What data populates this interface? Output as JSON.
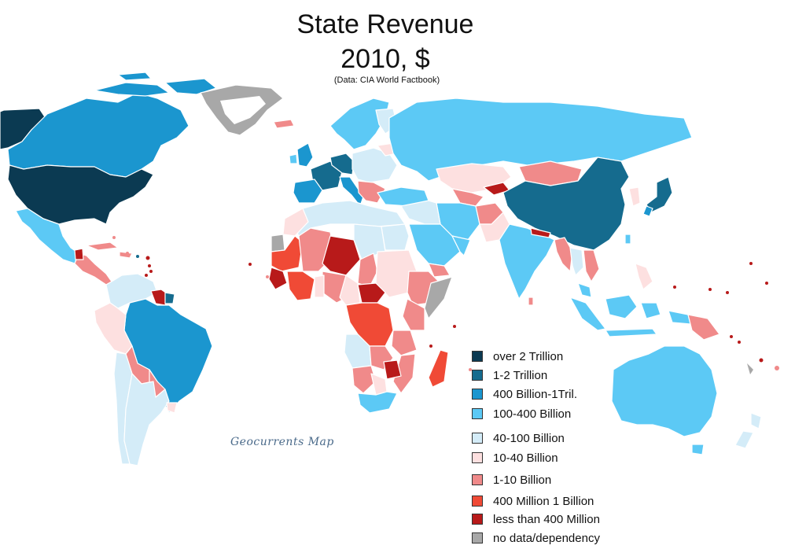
{
  "title": "State Revenue",
  "subtitle": "2010, $",
  "source": "(Data: CIA World Factbook)",
  "credit": "Geocurrents Map",
  "legend": [
    {
      "label": "over 2 Trillion",
      "color": "#0b3a52"
    },
    {
      "label": "1-2 Trillion",
      "color": "#156b8e"
    },
    {
      "label": "400 Billion-1Tril.",
      "color": "#1b96cf"
    },
    {
      "label": "100-400 Billion",
      "color": "#5cc9f5"
    },
    {
      "label": "40-100 Billion",
      "color": "#d4ecf8"
    },
    {
      "label": "10-40 Billion",
      "color": "#fde0e0"
    },
    {
      "label": "1-10 Billion",
      "color": "#f08a8a"
    },
    {
      "label": "400 Million 1 Billion",
      "color": "#f04a36"
    },
    {
      "label": "less than 400 Million",
      "color": "#b81a1a"
    },
    {
      "label": "no data/dependency",
      "color": "#a8a8a8"
    }
  ]
}
